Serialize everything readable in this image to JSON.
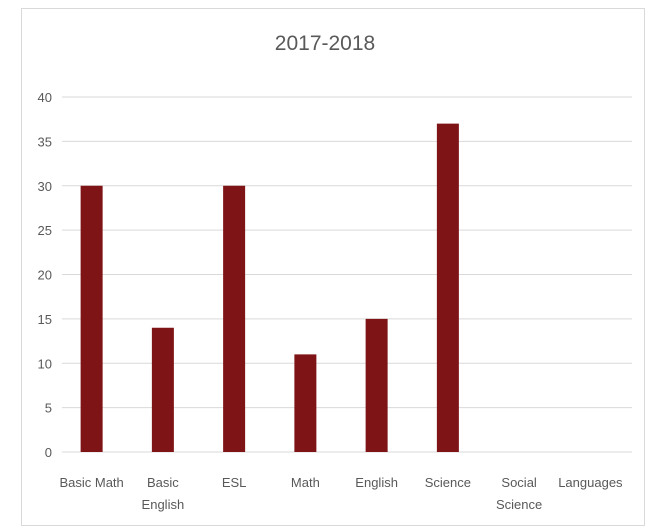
{
  "chart_data": {
    "type": "bar",
    "title": "2017-2018",
    "categories": [
      "Basic Math",
      "Basic English",
      "ESL",
      "Math",
      "English",
      "Science",
      "Social Science",
      "Languages"
    ],
    "category_lines": [
      [
        "Basic Math"
      ],
      [
        "Basic",
        "English"
      ],
      [
        "ESL"
      ],
      [
        "Math"
      ],
      [
        "English"
      ],
      [
        "Science"
      ],
      [
        "Social",
        "Science"
      ],
      [
        "Languages"
      ]
    ],
    "values": [
      30,
      14,
      30,
      11,
      15,
      37,
      0,
      0
    ],
    "ylim": [
      0,
      40
    ],
    "yticks": [
      0,
      5,
      10,
      15,
      20,
      25,
      30,
      35,
      40
    ],
    "grid": true,
    "legend": "none",
    "colors": {
      "bar": "#7f1416",
      "grid": "#d9d9d9",
      "text": "#595959"
    }
  }
}
